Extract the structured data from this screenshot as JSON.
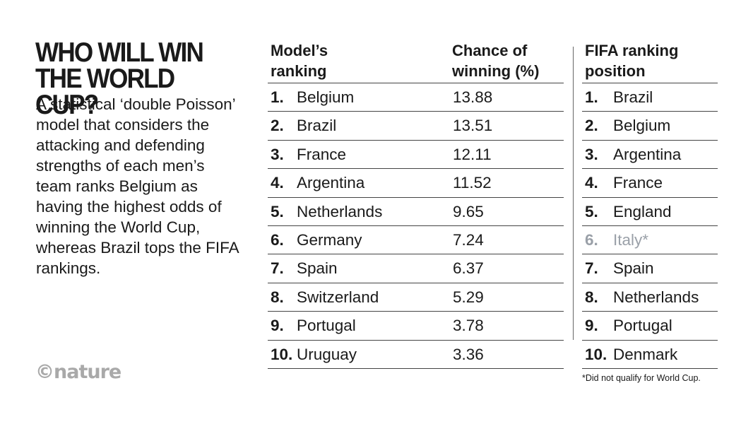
{
  "title": "WHO WILL WIN\nTHE WORLD CUP?",
  "subtitle": "A statistical ‘double Poisson’ model that considers the attacking and defending strengths of each men’s team ranks Belgium as having the highest odds of winning the World Cup, whereas Brazil tops the FIFA rankings.",
  "logo": "©nature",
  "footnote": "*Did not qualify for World Cup.",
  "chart_data": {
    "type": "table",
    "model_table": {
      "headers": [
        "Model’s\nranking",
        "Chance of\nwinning (%)"
      ],
      "rows": [
        {
          "rank": "1.",
          "team": "Belgium",
          "chance": 13.88
        },
        {
          "rank": "2.",
          "team": "Brazil",
          "chance": 13.51
        },
        {
          "rank": "3.",
          "team": "France",
          "chance": 12.11
        },
        {
          "rank": "4.",
          "team": "Argentina",
          "chance": 11.52
        },
        {
          "rank": "5.",
          "team": "Netherlands",
          "chance": 9.65
        },
        {
          "rank": "6.",
          "team": "Germany",
          "chance": 7.24
        },
        {
          "rank": "7.",
          "team": "Spain",
          "chance": 6.37
        },
        {
          "rank": "8.",
          "team": "Switzerland",
          "chance": 5.29
        },
        {
          "rank": "9.",
          "team": "Portugal",
          "chance": 3.78
        },
        {
          "rank": "10.",
          "team": "Uruguay",
          "chance": 3.36
        }
      ]
    },
    "fifa_table": {
      "header": "FIFA ranking\nposition",
      "rows": [
        {
          "rank": "1.",
          "team": "Brazil"
        },
        {
          "rank": "2.",
          "team": "Belgium"
        },
        {
          "rank": "3.",
          "team": "Argentina"
        },
        {
          "rank": "4.",
          "team": "France"
        },
        {
          "rank": "5.",
          "team": "England"
        },
        {
          "rank": "6.",
          "team": "Italy*",
          "qualified": false
        },
        {
          "rank": "7.",
          "team": "Spain"
        },
        {
          "rank": "8.",
          "team": "Netherlands"
        },
        {
          "rank": "9.",
          "team": "Portugal"
        },
        {
          "rank": "10.",
          "team": "Denmark"
        }
      ]
    },
    "colors": {
      "text": "#1a1a1a",
      "not_qualified": "#9aa0a8",
      "logo": "#a9a9a9"
    }
  }
}
